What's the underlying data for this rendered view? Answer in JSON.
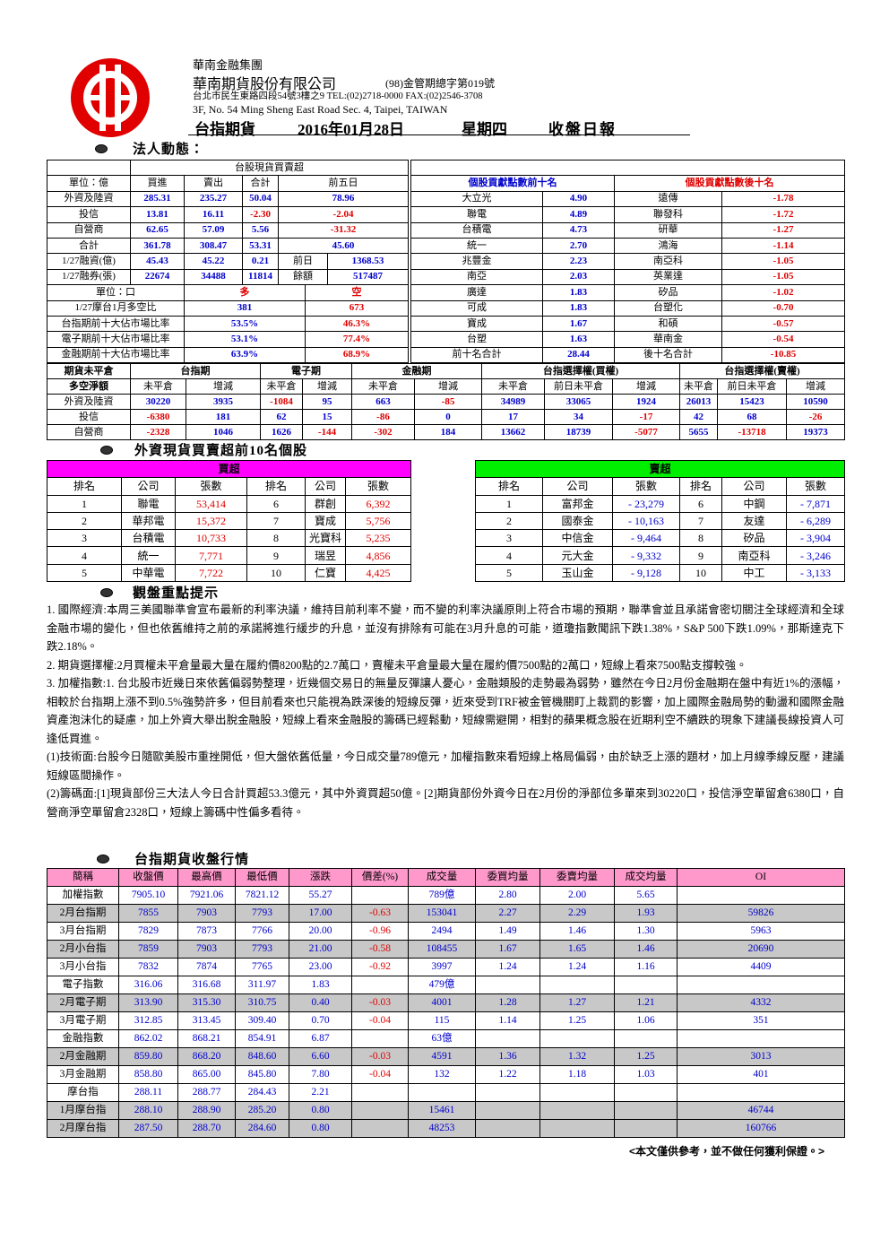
{
  "header": {
    "group": "華南金融集團",
    "company": "華南期貨股份有限公司",
    "license": "(98)金管期總字第019號",
    "address_zh": "台北市民生東路四段54號3樓之9 TEL:(02)2718-0000 FAX:(02)2546-3708",
    "address_en": "3F, No. 54 Ming Sheng East Road Sec. 4, Taipei, TAIWAN",
    "product": "台指期貨",
    "date": "2016年01月28日",
    "weekday": "星期四",
    "report": "收盤日報"
  },
  "institutional": {
    "title": "法人動態：",
    "spot": {
      "title": "台股現貨買賣超",
      "columns": [
        "單位：億",
        "買進",
        "賣出",
        "合計",
        "前五日"
      ],
      "rows": [
        [
          "外資及陸資",
          "285.31",
          "235.27",
          "50.04",
          "78.96"
        ],
        [
          "投信",
          "13.81",
          "16.11",
          "-2.30",
          "-2.04"
        ],
        [
          "自營商",
          "62.65",
          "57.09",
          "5.56",
          "-31.32"
        ],
        [
          "合計",
          "361.78",
          "308.47",
          "53.31",
          "45.60"
        ]
      ]
    },
    "margin": {
      "rows": [
        [
          "1/27融資(億)",
          "45.43",
          "45.22",
          "0.21",
          "前日",
          "1368.53"
        ],
        [
          "1/27融券(張)",
          "22674",
          "34488",
          "11814",
          "餘額",
          "517487"
        ]
      ]
    },
    "ratio": {
      "columns": [
        "單位：口",
        "多",
        "空"
      ],
      "rows": [
        [
          "1/27摩台1月多空比",
          "381",
          "673"
        ],
        [
          "台指期前十大佔市場比率",
          "53.5%",
          "46.3%"
        ],
        [
          "電子期前十大佔市場比率",
          "53.1%",
          "77.4%"
        ],
        [
          "金融期前十大佔市場比率",
          "63.9%",
          "68.9%"
        ]
      ]
    },
    "contrib": {
      "top_title": "個股貢獻點數前十名",
      "bottom_title": "個股貢獻點數後十名",
      "rows": [
        [
          "大立光",
          "4.90",
          "遠傳",
          "-1.78"
        ],
        [
          "聯電",
          "4.89",
          "聯發科",
          "-1.72"
        ],
        [
          "台積電",
          "4.73",
          "研華",
          "-1.27"
        ],
        [
          "統一",
          "2.70",
          "鴻海",
          "-1.14"
        ],
        [
          "兆豐金",
          "2.23",
          "南亞科",
          "-1.05"
        ],
        [
          "南亞",
          "2.03",
          "英業達",
          "-1.05"
        ],
        [
          "廣達",
          "1.83",
          "矽品",
          "-1.02"
        ],
        [
          "可成",
          "1.83",
          "台塑化",
          "-0.70"
        ],
        [
          "寶成",
          "1.67",
          "和碩",
          "-0.57"
        ],
        [
          "台塑",
          "1.63",
          "華南金",
          "-0.54"
        ],
        [
          "前十名合計",
          "28.44",
          "後十名合計",
          "-10.85"
        ]
      ]
    },
    "oi": {
      "groups": [
        "期貨未平倉",
        "台指期",
        "電子期",
        "金融期",
        "台指選擇權(買權)",
        "台指選擇權(賣權)"
      ],
      "columns": [
        "多空淨額",
        "未平倉",
        "增減",
        "未平倉",
        "增減",
        "未平倉",
        "增減",
        "未平倉",
        "前日未平倉",
        "增減",
        "未平倉",
        "前日未平倉",
        "增減"
      ],
      "rows": [
        [
          "外資及陸資",
          "30220",
          "3935",
          "-1084",
          "95",
          "663",
          "-85",
          "34989",
          "33065",
          "1924",
          "26013",
          "15423",
          "10590"
        ],
        [
          "投信",
          "-6380",
          "181",
          "62",
          "15",
          "-86",
          "0",
          "17",
          "34",
          "-17",
          "42",
          "68",
          "-26"
        ],
        [
          "自營商",
          "-2328",
          "1046",
          "1626",
          "-144",
          "-302",
          "184",
          "13662",
          "18739",
          "-5077",
          "5655",
          "-13718",
          "19373"
        ]
      ]
    }
  },
  "foreign_top": {
    "title": "外資現貨買賣超前10名個股",
    "buy": {
      "title": "買超",
      "columns": [
        "排名",
        "公司",
        "張數",
        "排名",
        "公司",
        "張數"
      ],
      "rows": [
        [
          "1",
          "聯電",
          "53,414",
          "6",
          "群創",
          "6,392"
        ],
        [
          "2",
          "華邦電",
          "15,372",
          "7",
          "寶成",
          "5,756"
        ],
        [
          "3",
          "台積電",
          "10,733",
          "8",
          "光寶科",
          "5,235"
        ],
        [
          "4",
          "統一",
          "7,771",
          "9",
          "瑞昱",
          "4,856"
        ],
        [
          "5",
          "中華電",
          "7,722",
          "10",
          "仁寶",
          "4,425"
        ]
      ]
    },
    "sell": {
      "title": "賣超",
      "columns": [
        "排名",
        "公司",
        "張數",
        "排名",
        "公司",
        "張數"
      ],
      "rows": [
        [
          "1",
          "富邦金",
          "- 23,279",
          "6",
          "中鋼",
          "- 7,871"
        ],
        [
          "2",
          "國泰金",
          "- 10,163",
          "7",
          "友達",
          "- 6,289"
        ],
        [
          "3",
          "中信金",
          "- 9,464",
          "8",
          "矽品",
          "- 3,904"
        ],
        [
          "4",
          "元大金",
          "- 9,332",
          "9",
          "南亞科",
          "- 3,246"
        ],
        [
          "5",
          "玉山金",
          "- 9,128",
          "10",
          "中工",
          "- 3,133"
        ]
      ]
    }
  },
  "notes": {
    "title": "觀盤重點提示",
    "paragraphs": [
      "1. 國際經濟:本周三美國聯準會宣布最新的利率決議，維持目前利率不變，而不變的利率決議原則上符合市場的預期，聯準會並且承諾會密切關注全球經濟和全球金融市場的變化，但也依舊維持之前的承諾將進行緩步的升息，並沒有排除有可能在3月升息的可能，道瓊指數聞訊下跌1.38%，S&P 500下跌1.09%，那斯達克下跌2.18%。",
      "2. 期貨選擇權:2月買權未平倉量最大量在履約價8200點的2.7萬口，賣權未平倉量最大量在履約價7500點的2萬口，短線上看來7500點支撐較強。",
      "3. 加權指數:1. 台北股市近幾日來依舊偏弱勢整理，近幾個交易日的無量反彈讓人憂心，金融類股的走勢最為弱勢，雖然在今日2月份金融期在盤中有近1%的漲幅，相較於台指期上漲不到0.5%強勢許多，但目前看來也只能視為跌深後的短線反彈，近來受到TRF被金管機關盯上裁罰的影響，加上國際金融局勢的動盪和國際金融資產泡沫化的疑慮，加上外資大舉出脫金融股，短線上看來金融股的籌碼已經鬆動，短線需避開，相對的蘋果概念股在近期利空不續跌的現象下建議長線投資人可逢低買進。",
      "(1)技術面:台股今日隨歐美股市重挫開低，但大盤依舊低量，今日成交量789億元，加權指數來看短線上格局偏弱，由於缺乏上漲的題材，加上月線季線反壓，建議短線區間操作。",
      "(2)籌碼面:[1]現貨部份三大法人今日合計買超53.3億元，其中外資買超50億。[2]期貨部份外資今日在2月份的淨部位多單來到30220口，投信淨空單留倉6380口，自營商淨空單留倉2328口，短線上籌碼中性偏多看待。"
    ]
  },
  "quotes": {
    "title": "台指期貨收盤行情",
    "columns": [
      "簡稱",
      "收盤價",
      "最高價",
      "最低價",
      "漲跌",
      "價差(%)",
      "成交量",
      "委買均量",
      "委賣均量",
      "成交均量",
      "OI"
    ],
    "rows": [
      [
        "加權指數",
        "7905.10",
        "7921.06",
        "7821.12",
        "55.27",
        null,
        "789億",
        "2.80",
        "2.00",
        "5.65",
        null
      ],
      [
        "2月台指期",
        "7855",
        "7903",
        "7793",
        "17.00",
        "-0.63",
        "153041",
        "2.27",
        "2.29",
        "1.93",
        "59826"
      ],
      [
        "3月台指期",
        "7829",
        "7873",
        "7766",
        "20.00",
        "-0.96",
        "2494",
        "1.49",
        "1.46",
        "1.30",
        "5963"
      ],
      [
        "2月小台指",
        "7859",
        "7903",
        "7793",
        "21.00",
        "-0.58",
        "108455",
        "1.67",
        "1.65",
        "1.46",
        "20690"
      ],
      [
        "3月小台指",
        "7832",
        "7874",
        "7765",
        "23.00",
        "-0.92",
        "3997",
        "1.24",
        "1.24",
        "1.16",
        "4409"
      ],
      [
        "電子指數",
        "316.06",
        "316.68",
        "311.97",
        "1.83",
        null,
        "479億",
        null,
        null,
        null,
        null
      ],
      [
        "2月電子期",
        "313.90",
        "315.30",
        "310.75",
        "0.40",
        "-0.03",
        "4001",
        "1.28",
        "1.27",
        "1.21",
        "4332"
      ],
      [
        "3月電子期",
        "312.85",
        "313.45",
        "309.40",
        "0.70",
        "-0.04",
        "115",
        "1.14",
        "1.25",
        "1.06",
        "351"
      ],
      [
        "金融指數",
        "862.02",
        "868.21",
        "854.91",
        "6.87",
        null,
        "63億",
        null,
        null,
        null,
        null
      ],
      [
        "2月金融期",
        "859.80",
        "868.20",
        "848.60",
        "6.60",
        "-0.03",
        "4591",
        "1.36",
        "1.32",
        "1.25",
        "3013"
      ],
      [
        "3月金融期",
        "858.80",
        "865.00",
        "845.80",
        "7.80",
        "-0.04",
        "132",
        "1.22",
        "1.18",
        "1.03",
        "401"
      ],
      [
        "摩台指",
        "288.11",
        "288.77",
        "284.43",
        "2.21",
        null,
        null,
        null,
        null,
        null,
        null
      ],
      [
        "1月摩台指",
        "288.10",
        "288.90",
        "285.20",
        "0.80",
        null,
        "15461",
        null,
        null,
        null,
        "46744"
      ],
      [
        "2月摩台指",
        "287.50",
        "288.70",
        "284.60",
        "0.80",
        null,
        "48253",
        null,
        null,
        null,
        "160766"
      ]
    ]
  },
  "footer": "<本文僅供參考，並不做任何獲利保證。>"
}
